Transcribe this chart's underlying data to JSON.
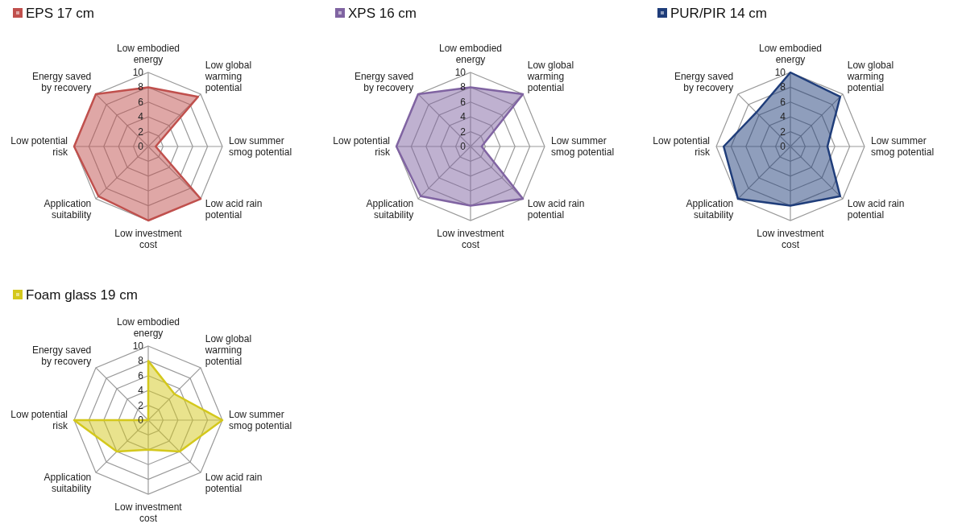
{
  "chart_data": [
    {
      "type": "radar",
      "categories": [
        "Low embodied energy",
        "Low global warming potential",
        "Low summer smog potential",
        "Low acid rain potential",
        "Low investment cost",
        "Application suitability",
        "Low potential risk",
        "Energy saved by recovery"
      ],
      "series": [
        {
          "name": "EPS 17 cm",
          "color": "#c0504d",
          "values": [
            8,
            9.5,
            1,
            10,
            10,
            9.5,
            10,
            10
          ]
        }
      ],
      "ylim": [
        0,
        10
      ],
      "yticks": [
        0,
        2,
        4,
        6,
        8,
        10
      ],
      "grid": true,
      "legend": "top left"
    },
    {
      "type": "radar",
      "categories": [
        "Low embodied energy",
        "Low global warming potential",
        "Low summer smog potential",
        "Low acid rain potential",
        "Low investment cost",
        "Application suitability",
        "Low potential risk",
        "Energy saved by recovery"
      ],
      "series": [
        {
          "name": "XPS 16 cm",
          "color": "#8064a2",
          "values": [
            8,
            10,
            1.5,
            10,
            8,
            9.5,
            10,
            10
          ]
        }
      ],
      "ylim": [
        0,
        10
      ],
      "yticks": [
        0,
        2,
        4,
        6,
        8,
        10
      ],
      "grid": true,
      "legend": "top left"
    },
    {
      "type": "radar",
      "categories": [
        "Low embodied energy",
        "Low global warming potential",
        "Low summer smog potential",
        "Low acid rain potential",
        "Low investment cost",
        "Application suitability",
        "Low potential risk",
        "Energy saved by recovery"
      ],
      "series": [
        {
          "name": "PUR/PIR 14 cm",
          "color": "#1f3d7a",
          "values": [
            10,
            9.5,
            5,
            9.5,
            8,
            10,
            9,
            6.5
          ]
        }
      ],
      "ylim": [
        0,
        10
      ],
      "yticks": [
        0,
        2,
        4,
        6,
        8,
        10
      ],
      "grid": true,
      "legend": "top left"
    },
    {
      "type": "radar",
      "categories": [
        "Low embodied energy",
        "Low global warming potential",
        "Low summer smog potential",
        "Low acid rain potential",
        "Low investment cost",
        "Application suitability",
        "Low potential risk",
        "Energy saved by recovery"
      ],
      "series": [
        {
          "name": "Foam glass 19 cm",
          "color": "#d4c81c",
          "values": [
            8,
            5,
            10,
            6,
            4,
            6,
            10,
            0
          ]
        }
      ],
      "ylim": [
        0,
        10
      ],
      "yticks": [
        0,
        2,
        4,
        6,
        8,
        10
      ],
      "grid": true,
      "legend": "top left"
    }
  ]
}
